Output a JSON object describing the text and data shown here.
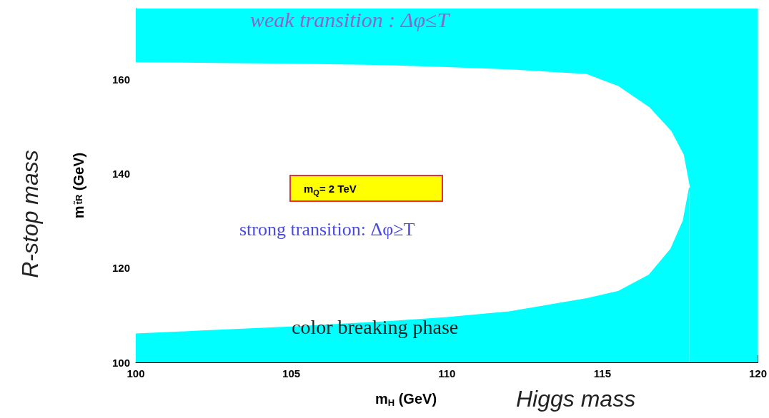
{
  "chart_data": {
    "type": "area",
    "xlabel": "m$_{H}$ (GeV)",
    "ylabel": "m$_{t̃R}$ (GeV)",
    "x": [
      100,
      102,
      105,
      108,
      110,
      112,
      114.5,
      115.5,
      116.5,
      117.2,
      117.6,
      117.8
    ],
    "series": [
      {
        "color": "#ffffff",
        "values": [
          163.5,
          163.4,
          163.2,
          162.9,
          162.5,
          162,
          161,
          158.5,
          154,
          149,
          144,
          137
        ]
      },
      {
        "color": "#00ffff",
        "values": [
          106,
          106.6,
          107.5,
          108.6,
          109.5,
          110.7,
          113.5,
          115,
          118.5,
          124,
          130,
          137
        ]
      }
    ],
    "xlim": [
      100,
      120
    ],
    "xticks": [
      100,
      105,
      110,
      115,
      120
    ],
    "ylim": [
      100,
      175
    ],
    "yticks": [
      100,
      120,
      140,
      160
    ],
    "bands": [
      {
        "axis": "x",
        "from": 100,
        "to": 120,
        "color": "#00ffff"
      }
    ],
    "grid": false,
    "marker": "none",
    "annotations": [
      "weak transition : Δφ≤T",
      "strong transition: Δφ≥T",
      "m$_{Q}$= 2 TeV",
      "color breaking phase",
      "Higgs mass",
      "R-stop mass"
    ]
  }
}
